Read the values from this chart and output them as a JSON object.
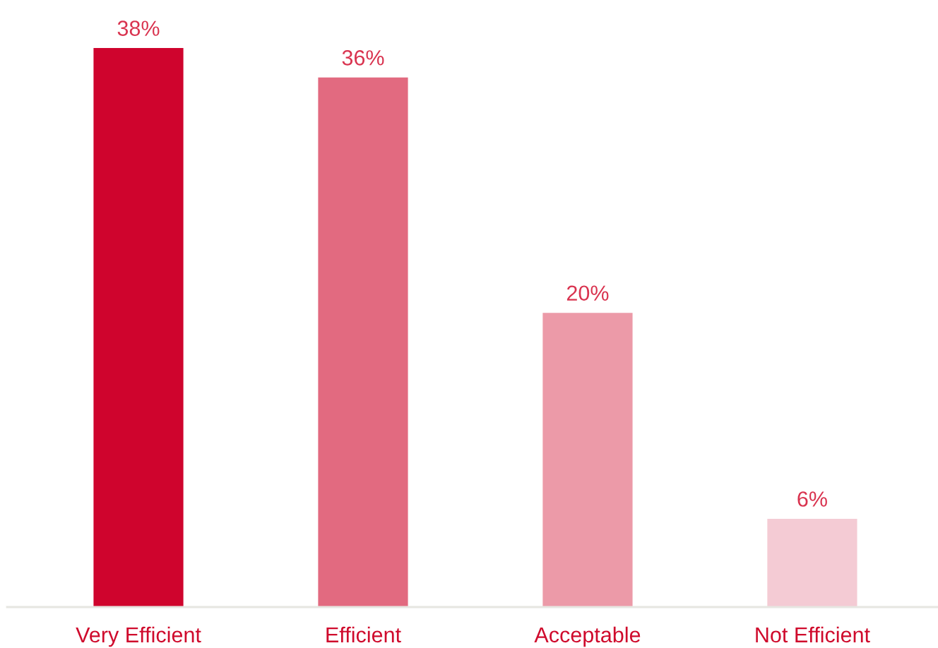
{
  "chart_data": {
    "type": "bar",
    "categories": [
      "Very Efficient",
      "Efficient",
      "Acceptable",
      "Not Efficient"
    ],
    "values": [
      38,
      36,
      20,
      6
    ],
    "colors": [
      "#cf042d",
      "#e26a80",
      "#ec9aa8",
      "#f4cbd4"
    ],
    "value_labels": [
      "38%",
      "36%",
      "20%",
      "6%"
    ],
    "grid": false,
    "legend": false,
    "tick_labels": "x"
  }
}
